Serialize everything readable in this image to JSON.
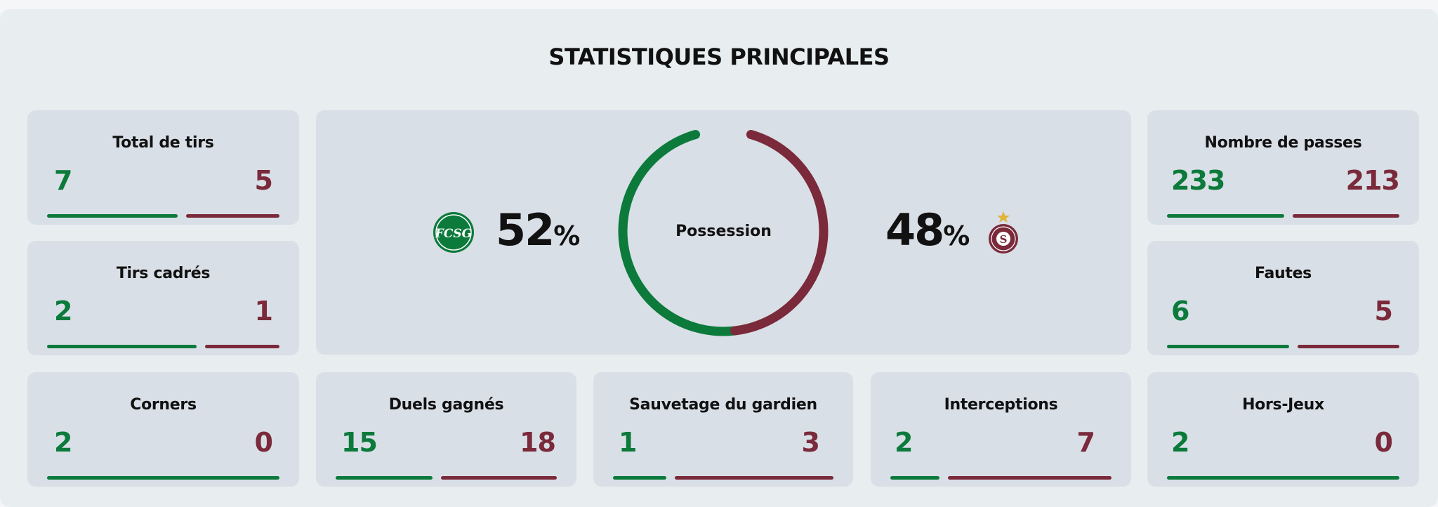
{
  "title": "STATISTIQUES PRINCIPALES",
  "colors": {
    "home": "#0b7a3b",
    "away": "#7a2a3a"
  },
  "home_team": {
    "logo_icon": "st-gallen-crest-icon",
    "logo_text": "FCSG"
  },
  "away_team": {
    "logo_icon": "servette-crest-icon",
    "logo_text": "S"
  },
  "possession": {
    "label": "Possession",
    "home": "52",
    "away": "48",
    "sign": "%",
    "home_fraction": 0.52,
    "away_fraction": 0.48
  },
  "stats": {
    "total_shots": {
      "label": "Total de tirs",
      "home": "7",
      "away": "5"
    },
    "shots_on_target": {
      "label": "Tirs cadrés",
      "home": "2",
      "away": "1"
    },
    "corners": {
      "label": "Corners",
      "home": "2",
      "away": "0"
    },
    "duels_won": {
      "label": "Duels gagnés",
      "home": "15",
      "away": "18"
    },
    "goalkeeper_saves": {
      "label": "Sauvetage du gardien",
      "home": "1",
      "away": "3"
    },
    "interceptions": {
      "label": "Interceptions",
      "home": "2",
      "away": "7"
    },
    "passes": {
      "label": "Nombre de passes",
      "home": "233",
      "away": "213"
    },
    "fouls": {
      "label": "Fautes",
      "home": "6",
      "away": "5"
    },
    "offsides": {
      "label": "Hors-Jeux",
      "home": "2",
      "away": "0"
    }
  }
}
